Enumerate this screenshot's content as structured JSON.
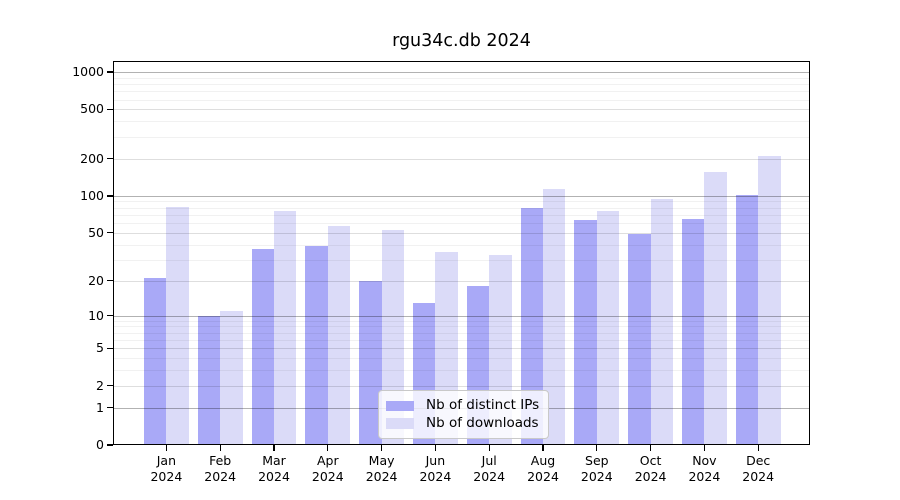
{
  "chart_data": {
    "type": "bar",
    "title": "rgu34c.db 2024",
    "year_label": "2024",
    "categories": [
      "Jan",
      "Feb",
      "Mar",
      "Apr",
      "May",
      "Jun",
      "Jul",
      "Aug",
      "Sep",
      "Oct",
      "Nov",
      "Dec"
    ],
    "series": [
      {
        "name": "Nb of distinct IPs",
        "color": "#a9a9f7",
        "values": [
          21,
          10,
          37,
          39,
          20,
          13,
          18,
          79,
          64,
          49,
          65,
          102
        ]
      },
      {
        "name": "Nb of downloads",
        "color": "#dbdbf8",
        "values": [
          81,
          11,
          76,
          57,
          53,
          35,
          33,
          114,
          76,
          94,
          157,
          212
        ]
      }
    ],
    "yscale": "log10(1+v)",
    "yticks": [
      0,
      1,
      2,
      5,
      10,
      20,
      50,
      100,
      200,
      500,
      1000
    ],
    "ylim": [
      0,
      1220
    ],
    "grid": "horizontal log gridlines with minors",
    "legend_position": "inside-bottom-center",
    "colors": {
      "axis": "#000000",
      "gridline_power_of_ten": "#b3b3b3",
      "gridline_major": "#dedede",
      "gridline_minor": "#efefef",
      "background": "#ffffff"
    }
  }
}
